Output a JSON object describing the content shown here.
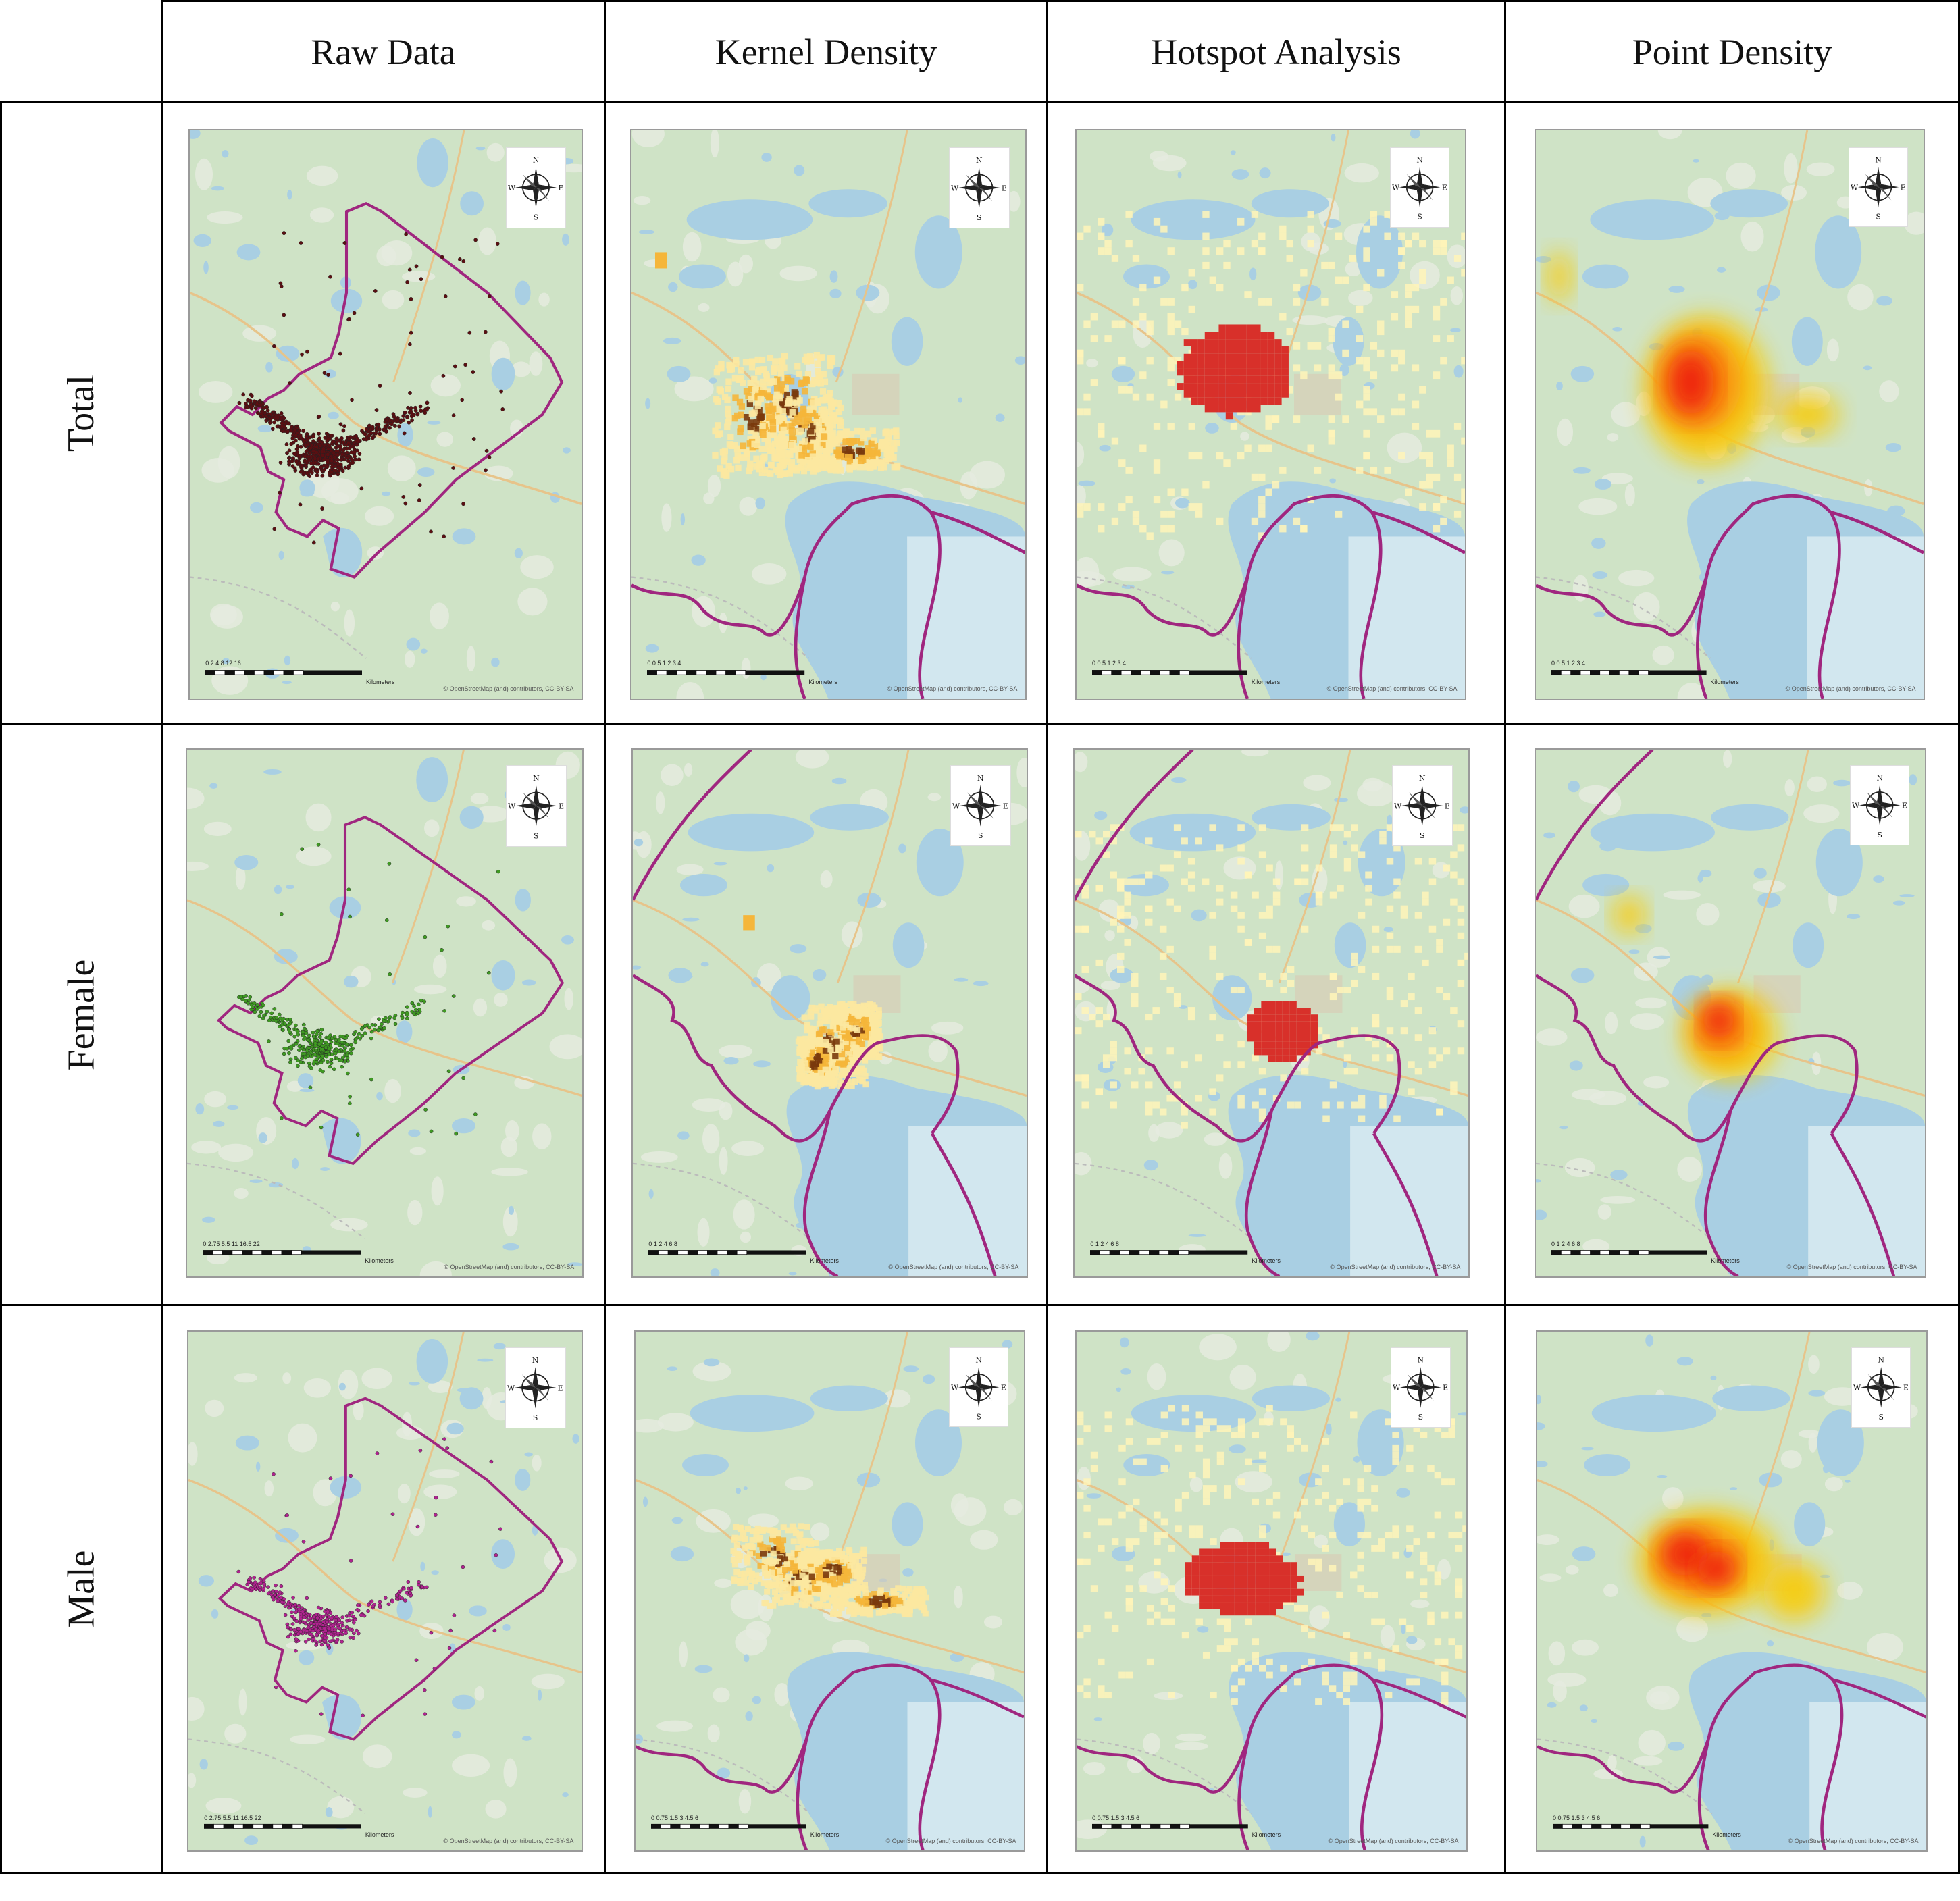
{
  "table": {
    "column_headers": [
      "Raw Data",
      "Kernel Density",
      "Hotspot Analysis",
      "Point Density"
    ],
    "row_labels": [
      "Total",
      "Female",
      "Male"
    ]
  },
  "compass": {
    "n": "N",
    "s": "S",
    "e": "E",
    "w": "W"
  },
  "scale_unit": "Kilometers",
  "attribution": "© OpenStreetMap (and) contributors, CC-BY-SA",
  "scales": {
    "raw_total": "0 2 4 8 12 16",
    "raw_fm": "0 2.75 5.5 11 16.5 22",
    "total_small": "0 0.5 1 2 3 4",
    "female_small": "0 1 2 4 6 8",
    "male_small": "0 0.75 1.5 3 4.5 6"
  },
  "colors": {
    "boundary": "#a0267f",
    "water": "#a9cfe3",
    "land": "#cfe3c6",
    "total_points": "#5a0f12",
    "female_points": "#3f9a22",
    "male_points": "#b0238f",
    "kernel_low": "#fce8a0",
    "kernel_mid": "#f5b63a",
    "kernel_high": "#7a3a0c",
    "hotspot_high": "#d8302a",
    "hotspot_low": "#fff4b8",
    "point_red": "#ee1d0f",
    "point_orange": "#fa8a0f",
    "point_yellow": "#f7cc07"
  }
}
